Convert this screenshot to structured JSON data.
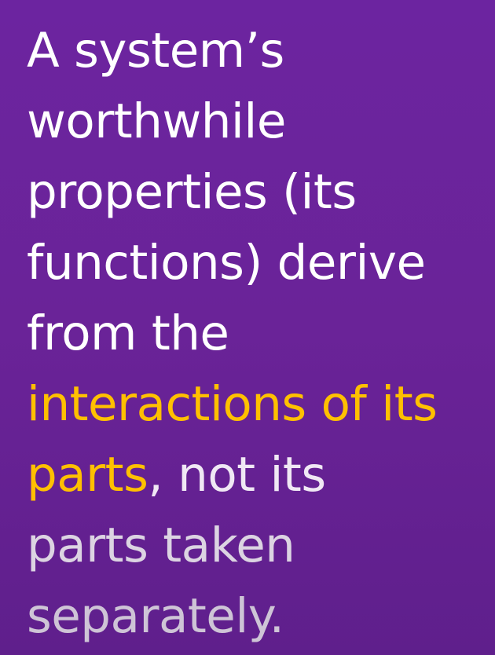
{
  "slide": {
    "lines": [
      "A system’s",
      "worthwhile",
      "properties (its",
      "functions) derive",
      "from the"
    ],
    "highlight_line": "interactions of its",
    "highlight_part_line": {
      "highlight": "parts",
      "rest": ", not its"
    },
    "tail_lines": [
      "parts taken",
      "separately."
    ]
  },
  "colors": {
    "background": "#6a2398",
    "text": "#ffffff",
    "highlight": "#ffc000"
  }
}
